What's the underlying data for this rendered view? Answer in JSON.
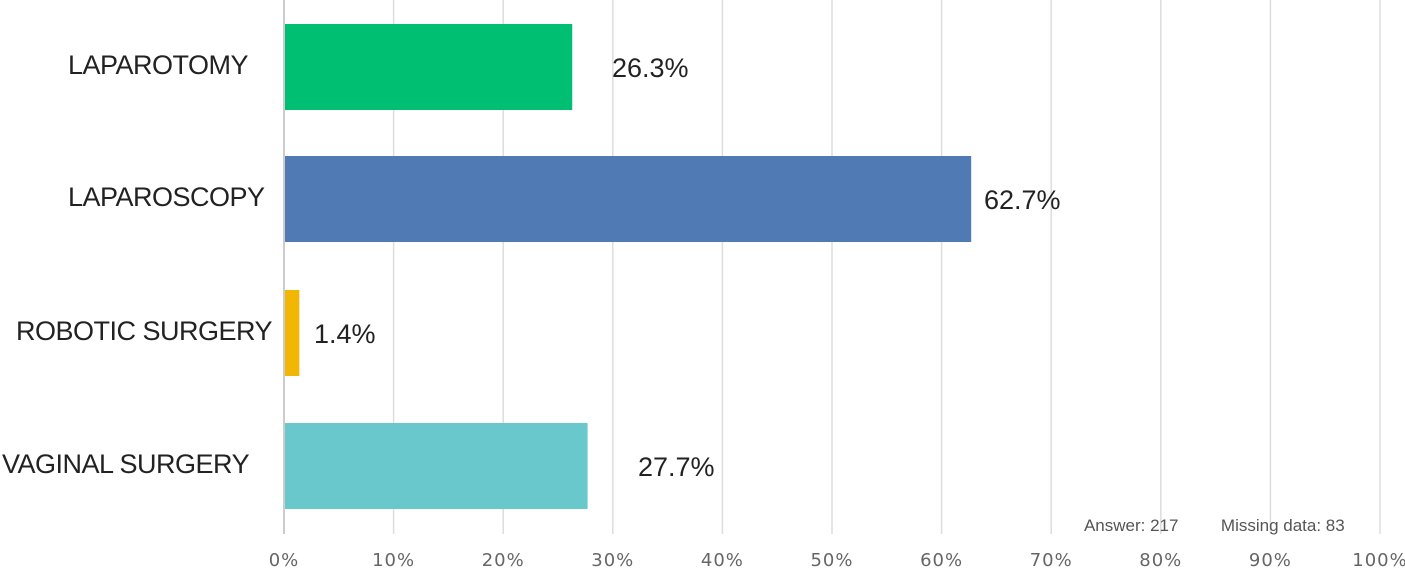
{
  "chart_data": {
    "type": "bar",
    "orientation": "horizontal",
    "categories": [
      "LAPAROTOMY",
      "LAPAROSCOPY",
      "ROBOTIC SURGERY",
      "VAGINAL SURGERY"
    ],
    "values": [
      26.3,
      62.7,
      1.4,
      27.7
    ],
    "value_labels": [
      "26.3%",
      "62.7%",
      "1.4%",
      "27.7%"
    ],
    "colors": [
      "#00BF72",
      "#4F7AB3",
      "#F2B705",
      "#69C8CC"
    ],
    "xlim": [
      0,
      100
    ],
    "x_ticks": [
      0,
      10,
      20,
      30,
      40,
      50,
      60,
      70,
      80,
      90,
      100
    ],
    "x_tick_labels": [
      "0%",
      "10%",
      "20%",
      "30%",
      "40%",
      "50%",
      "60%",
      "70%",
      "80%",
      "90%",
      "100%"
    ],
    "grid": true,
    "title": "",
    "xlabel": "",
    "ylabel": ""
  },
  "footer": {
    "answer": "Answer: 217",
    "missing": "Missing data: 83"
  }
}
